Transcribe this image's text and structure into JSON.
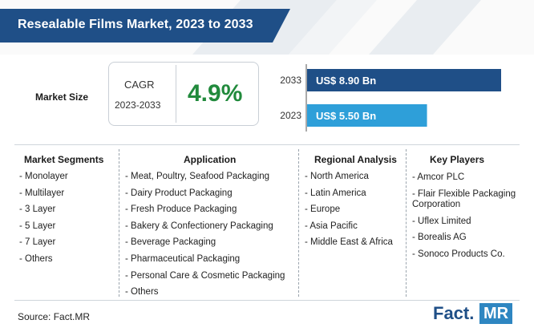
{
  "title": "Resealable Films Market, 2023 to 2033",
  "market_size_label": "Market Size",
  "cagr": {
    "label": "CAGR",
    "period": "2023-2033",
    "value": "4.9%"
  },
  "colors": {
    "header": "#1f4f87",
    "bar_2033": "#1f4f87",
    "bar_2023": "#2e9fd9",
    "cagr_value": "#218a3c"
  },
  "chart_data": {
    "type": "bar",
    "orientation": "horizontal",
    "categories": [
      "2033",
      "2023"
    ],
    "values": [
      8.9,
      5.5
    ],
    "labels": [
      "US$ 8.90 Bn",
      "US$ 5.50 Bn"
    ],
    "unit": "US$ Bn",
    "title": "",
    "xlabel": "",
    "ylabel": ""
  },
  "columns": {
    "segments": {
      "title": "Market Segments",
      "items": [
        "- Monolayer",
        "- Multilayer",
        "- 3 Layer",
        "- 5 Layer",
        "- 7 Layer",
        "- Others"
      ]
    },
    "application": {
      "title": "Application",
      "items": [
        "- Meat, Poultry, Seafood Packaging",
        "- Dairy Product Packaging",
        "- Fresh Produce Packaging",
        "- Bakery & Confectionery Packaging",
        "- Beverage Packaging",
        "- Pharmaceutical Packaging",
        "- Personal Care & Cosmetic Packaging",
        "- Others"
      ]
    },
    "regional": {
      "title": "Regional Analysis",
      "items": [
        "- North America",
        "- Latin America",
        "- Europe",
        "- Asia Pacific",
        "- Middle East & Africa"
      ]
    },
    "players": {
      "title": "Key Players",
      "items": [
        "- Amcor PLC",
        "- Flair Flexible Packaging Corporation",
        "- Uflex Limited",
        "- Borealis AG",
        "- Sonoco Products Co."
      ]
    }
  },
  "source": "Source: Fact.MR",
  "logo": {
    "fact": "Fact.",
    "mr": "MR"
  }
}
